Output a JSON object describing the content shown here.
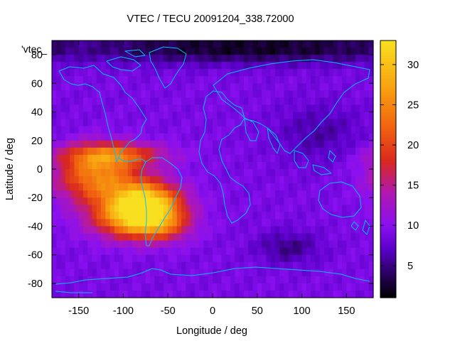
{
  "chart_data": {
    "type": "heatmap",
    "title": "VTEC / TECU 20091204_338.72000",
    "xlabel": "Longitude / deg",
    "ylabel": "Latitude / deg",
    "plot_key": "'vtec_",
    "xlim": [
      -180,
      180
    ],
    "ylim": [
      -90,
      90
    ],
    "x_ticks": [
      -150,
      -100,
      -50,
      0,
      50,
      100,
      150
    ],
    "y_ticks": [
      -80,
      -60,
      -40,
      -20,
      0,
      20,
      40,
      60,
      80
    ],
    "colorbar": {
      "range": [
        1,
        33
      ],
      "ticks": [
        5,
        10,
        15,
        20,
        25,
        30
      ]
    },
    "grid": false,
    "background_vtec": 9,
    "features": [
      {
        "name": "equatorial-anomaly-main",
        "lon": -75,
        "lat": -25,
        "vtec": 33,
        "lon_sigma": 28,
        "lat_sigma": 11
      },
      {
        "name": "equatorial-anomaly-west",
        "lon": -130,
        "lat": -5,
        "vtec": 24,
        "lon_sigma": 32,
        "lat_sigma": 13
      },
      {
        "name": "northern-crest",
        "lon": -110,
        "lat": 10,
        "vtec": 20,
        "lon_sigma": 40,
        "lat_sigma": 6
      },
      {
        "name": "southern-extension",
        "lon": -60,
        "lat": -40,
        "vtec": 18,
        "lon_sigma": 25,
        "lat_sigma": 8
      },
      {
        "name": "south-pacific-tail",
        "lon": -100,
        "lat": -35,
        "vtec": 19,
        "lon_sigma": 30,
        "lat_sigma": 10
      },
      {
        "name": "arctic-night-low",
        "lon": 40,
        "lat": 85,
        "vtec": 2,
        "lon_sigma": 160,
        "lat_sigma": 8
      },
      {
        "name": "indian-ocean-south-low",
        "lon": 85,
        "lat": -55,
        "vtec": 5,
        "lon_sigma": 25,
        "lat_sigma": 8
      },
      {
        "name": "asia-night-low",
        "lon": 120,
        "lat": 25,
        "vtec": 6,
        "lon_sigma": 35,
        "lat_sigma": 15
      }
    ],
    "colors": {
      "c0": "#000000",
      "c1": "#2a0060",
      "c2": "#5a00c8",
      "c3": "#8a10f0",
      "c4": "#b018b0",
      "c5": "#d8281f",
      "c6": "#f06010",
      "c7": "#f8a010",
      "c8": "#f8e020",
      "coast": "#00bfff"
    }
  }
}
